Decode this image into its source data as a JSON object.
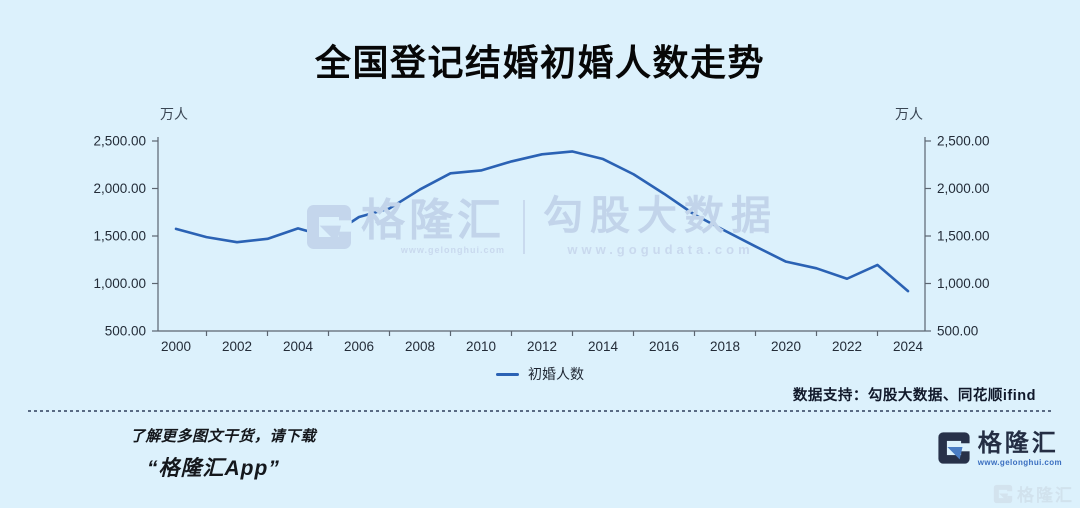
{
  "title": "全国登记结婚初婚人数走势",
  "chart_data": {
    "type": "line",
    "title": "全国登记结婚初婚人数走势",
    "unit_label": "万人",
    "series_name": "初婚人数",
    "x": [
      2000,
      2001,
      2002,
      2003,
      2004,
      2005,
      2006,
      2007,
      2008,
      2009,
      2010,
      2011,
      2012,
      2013,
      2014,
      2015,
      2016,
      2017,
      2018,
      2019,
      2020,
      2021,
      2022,
      2023,
      2024
    ],
    "values": [
      1575,
      1488,
      1435,
      1470,
      1580,
      1490,
      1700,
      1790,
      1990,
      2160,
      2190,
      2285,
      2360,
      2390,
      2310,
      2150,
      1945,
      1725,
      1555,
      1390,
      1230,
      1160,
      1050,
      1195,
      920
    ],
    "ylim": [
      500,
      2500
    ],
    "y_ticks": [
      "2,500.00",
      "2,000.00",
      "1,500.00",
      "1,000.00",
      "500.00"
    ],
    "x_tick_labels": [
      "2000",
      "2002",
      "2004",
      "2006",
      "2008",
      "2010",
      "2012",
      "2014",
      "2016",
      "2018",
      "2020",
      "2022",
      "2024"
    ],
    "grid": "off",
    "legend_position": "bottom",
    "line_color": "#2b62b4",
    "axis_color": "#5b6570",
    "label_color": "#232c38"
  },
  "watermark": {
    "brand": "格隆汇",
    "brand_url": "www.gelonghui.com",
    "partner": "勾股大数据",
    "partner_url": "www.gogudata.com"
  },
  "legend": {
    "label": "初婚人数"
  },
  "data_support": "数据支持：勾股大数据、同花顺ifind",
  "footer": {
    "promo_line1": "了解更多图文干货，请下载",
    "promo_line2": "“格隆汇App”",
    "brand": "格隆汇",
    "brand_url": "www.gelonghui.com"
  },
  "colors": {
    "background": "#dcf1fc",
    "line": "#2b62b4",
    "navy": "#273149",
    "accent_blue": "#4a7dc4",
    "watermark": "#c4d6ec"
  }
}
